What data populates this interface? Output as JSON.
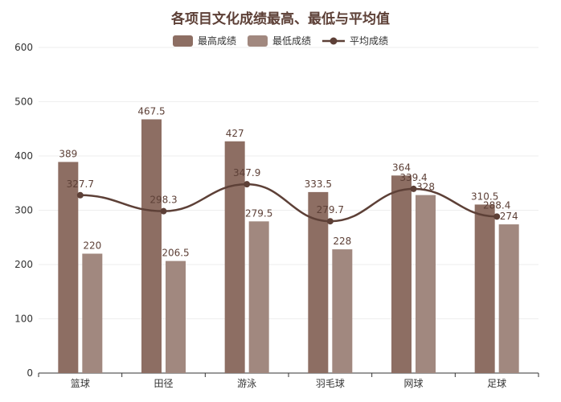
{
  "chart_data": {
    "type": "bar",
    "title": "各项目文化成绩最高、最低与平均值",
    "categories": [
      "篮球",
      "田径",
      "游泳",
      "羽毛球",
      "网球",
      "足球"
    ],
    "series": [
      {
        "name": "最高成绩",
        "type": "bar",
        "color": "#8d6e63",
        "values": [
          389,
          467.5,
          427,
          333.5,
          364,
          310.5
        ]
      },
      {
        "name": "最低成绩",
        "type": "bar",
        "color": "#a1887f",
        "values": [
          220,
          206.5,
          279.5,
          228,
          328,
          274
        ]
      },
      {
        "name": "平均成绩",
        "type": "line",
        "smooth": true,
        "color": "#5d4037",
        "values": [
          327.7,
          298.3,
          347.9,
          279.7,
          339.4,
          288.4
        ]
      }
    ],
    "yticks": [
      "0",
      "100",
      "200",
      "300",
      "400",
      "500",
      "600"
    ],
    "ylim": [
      0,
      600
    ],
    "xlabel": "",
    "ylabel": "",
    "grid": true,
    "legend": "top-center",
    "label_color": "#5d4037",
    "axis_color": "#333333",
    "grid_color": "#eeeeee"
  }
}
